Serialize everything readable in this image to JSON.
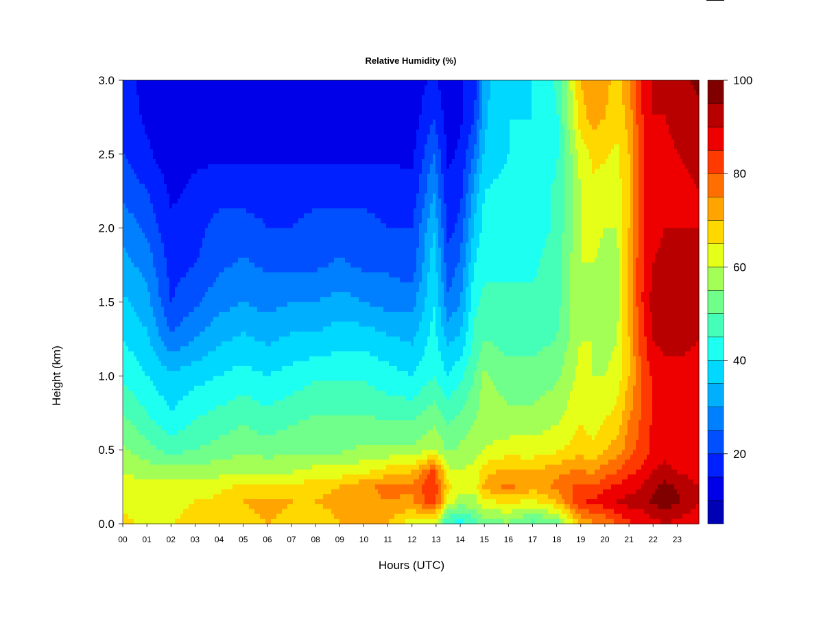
{
  "chart_data": {
    "type": "heatmap",
    "title": "Relative Humidity (%)",
    "xlabel": "Hours (UTC)",
    "ylabel": "Height (km)",
    "x_ticks": [
      "00",
      "01",
      "02",
      "03",
      "04",
      "05",
      "06",
      "07",
      "08",
      "09",
      "10",
      "11",
      "12",
      "13",
      "14",
      "15",
      "16",
      "17",
      "18",
      "19",
      "20",
      "21",
      "22",
      "23"
    ],
    "y_ticks": [
      "0.0",
      "0.5",
      "1.0",
      "1.5",
      "2.0",
      "2.5",
      "3.0"
    ],
    "xlim": [
      0,
      23.9
    ],
    "ylim": [
      0,
      3.0
    ],
    "colorbar": {
      "range": [
        5,
        100
      ],
      "ticks": [
        "20",
        "40",
        "60",
        "80",
        "100"
      ],
      "levels": [
        5,
        10,
        15,
        20,
        25,
        30,
        35,
        40,
        45,
        50,
        55,
        60,
        65,
        70,
        75,
        80,
        85,
        90,
        95,
        100
      ],
      "colors": [
        "#00007f",
        "#0000b4",
        "#0000e8",
        "#0020ff",
        "#0050ff",
        "#0080ff",
        "#00b0ff",
        "#00d8ff",
        "#1dfff0",
        "#45ffb8",
        "#70ff8a",
        "#a3ff55",
        "#e6ff18",
        "#ffd800",
        "#ffa400",
        "#ff6e00",
        "#ff3a00",
        "#ef0000",
        "#b80000",
        "#800000"
      ]
    },
    "heights_km": [
      0.0,
      0.15,
      0.25,
      0.35,
      0.5,
      0.75,
      1.0,
      1.25,
      1.5,
      1.75,
      2.0,
      2.25,
      2.5,
      2.75,
      3.0
    ],
    "hours": [
      0.0,
      1.0,
      2.0,
      3.0,
      4.0,
      5.0,
      6.0,
      7.0,
      8.0,
      9.0,
      10.0,
      11.0,
      12.0,
      12.9,
      13.5,
      14.0,
      14.6,
      15.0,
      16.0,
      17.0,
      18.0,
      19.0,
      19.5,
      20.0,
      20.5,
      21.0,
      21.5,
      22.0,
      22.5,
      23.0,
      23.9
    ],
    "rh_percent": [
      [
        66,
        64,
        62,
        60,
        56,
        50,
        44,
        40,
        36,
        32,
        28,
        24,
        20,
        18,
        16
      ],
      [
        64,
        63,
        61,
        58,
        52,
        45,
        40,
        36,
        32,
        28,
        24,
        20,
        16,
        14,
        14
      ],
      [
        65,
        64,
        62,
        58,
        48,
        40,
        36,
        26,
        20,
        18,
        16,
        14,
        12,
        10,
        10
      ],
      [
        66,
        65,
        62,
        58,
        50,
        44,
        38,
        30,
        24,
        20,
        18,
        16,
        14,
        12,
        12
      ],
      [
        66,
        66,
        64,
        58,
        52,
        46,
        40,
        34,
        28,
        24,
        22,
        18,
        14,
        12,
        12
      ],
      [
        68,
        70,
        66,
        60,
        54,
        48,
        42,
        36,
        30,
        26,
        22,
        18,
        14,
        12,
        12
      ],
      [
        70,
        72,
        66,
        60,
        52,
        46,
        40,
        34,
        28,
        24,
        20,
        18,
        14,
        12,
        12
      ],
      [
        68,
        70,
        66,
        60,
        54,
        48,
        42,
        36,
        30,
        24,
        20,
        18,
        14,
        12,
        12
      ],
      [
        66,
        70,
        68,
        62,
        54,
        50,
        44,
        36,
        30,
        24,
        22,
        18,
        14,
        12,
        12
      ],
      [
        70,
        72,
        70,
        62,
        54,
        50,
        44,
        38,
        32,
        26,
        22,
        18,
        14,
        12,
        12
      ],
      [
        72,
        74,
        74,
        64,
        56,
        50,
        44,
        38,
        30,
        24,
        22,
        18,
        14,
        12,
        12
      ],
      [
        70,
        75,
        76,
        68,
        56,
        48,
        42,
        36,
        28,
        24,
        20,
        18,
        14,
        12,
        12
      ],
      [
        62,
        74,
        76,
        70,
        56,
        48,
        40,
        34,
        28,
        22,
        20,
        16,
        14,
        12,
        12
      ],
      [
        62,
        84,
        85,
        82,
        60,
        52,
        45,
        42,
        40,
        38,
        35,
        30,
        25,
        20,
        16
      ],
      [
        44,
        62,
        66,
        62,
        54,
        48,
        40,
        34,
        26,
        22,
        18,
        16,
        14,
        12,
        12
      ],
      [
        42,
        58,
        62,
        60,
        56,
        50,
        44,
        36,
        30,
        26,
        22,
        18,
        16,
        14,
        14
      ],
      [
        48,
        58,
        62,
        62,
        58,
        54,
        50,
        46,
        44,
        40,
        36,
        32,
        26,
        20,
        18
      ],
      [
        52,
        64,
        72,
        68,
        60,
        58,
        56,
        50,
        46,
        44,
        42,
        40,
        36,
        34,
        34
      ],
      [
        54,
        66,
        76,
        72,
        62,
        56,
        52,
        48,
        46,
        44,
        42,
        42,
        40,
        40,
        38
      ],
      [
        48,
        64,
        72,
        70,
        62,
        56,
        52,
        48,
        46,
        44,
        42,
        42,
        42,
        40,
        40
      ],
      [
        52,
        70,
        76,
        74,
        64,
        58,
        54,
        50,
        48,
        48,
        46,
        46,
        44,
        44,
        46
      ],
      [
        70,
        84,
        82,
        76,
        68,
        64,
        62,
        60,
        60,
        60,
        60,
        60,
        62,
        68,
        70
      ],
      [
        74,
        86,
        80,
        74,
        66,
        62,
        60,
        60,
        60,
        60,
        62,
        64,
        66,
        72,
        74
      ],
      [
        76,
        88,
        84,
        78,
        70,
        64,
        60,
        58,
        58,
        58,
        60,
        62,
        66,
        70,
        72
      ],
      [
        80,
        90,
        86,
        80,
        72,
        66,
        62,
        60,
        58,
        58,
        60,
        62,
        64,
        66,
        68
      ],
      [
        84,
        92,
        88,
        84,
        78,
        74,
        70,
        70,
        72,
        72,
        70,
        70,
        70,
        72,
        74
      ],
      [
        86,
        92,
        90,
        86,
        82,
        80,
        80,
        82,
        84,
        84,
        84,
        84,
        84,
        84,
        86
      ],
      [
        88,
        96,
        94,
        90,
        86,
        86,
        86,
        90,
        92,
        90,
        88,
        88,
        88,
        90,
        90
      ],
      [
        90,
        98,
        97,
        92,
        88,
        88,
        88,
        92,
        94,
        92,
        90,
        88,
        88,
        90,
        92
      ],
      [
        88,
        96,
        94,
        90,
        86,
        86,
        88,
        92,
        94,
        92,
        90,
        88,
        90,
        92,
        94
      ],
      [
        86,
        90,
        90,
        88,
        86,
        86,
        88,
        90,
        92,
        90,
        90,
        90,
        92,
        94,
        96
      ]
    ]
  },
  "corner_mark": ""
}
